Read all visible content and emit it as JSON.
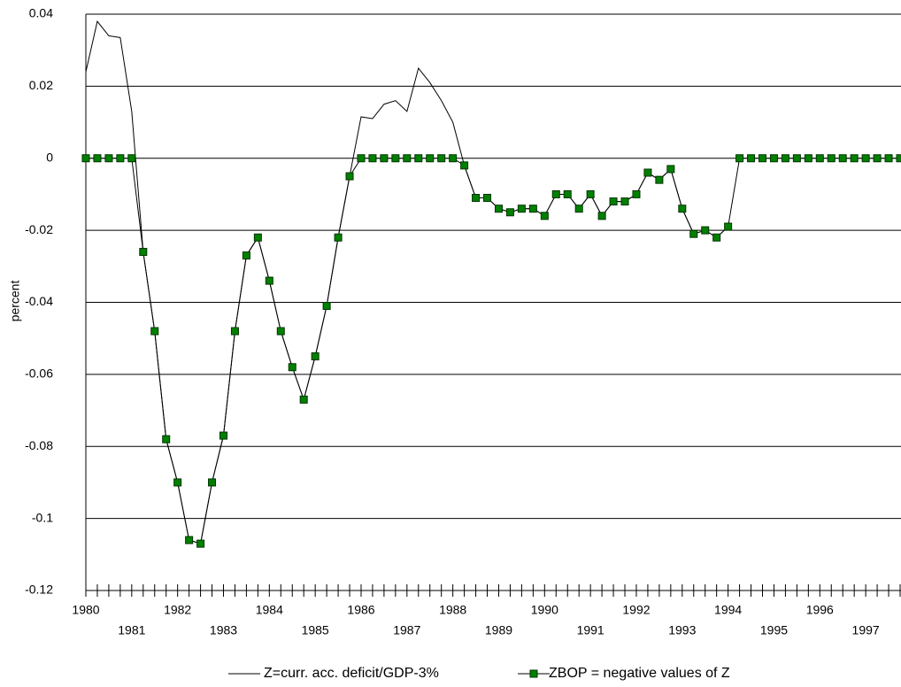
{
  "chart_data": {
    "type": "line",
    "y_label": "percent",
    "categories": [
      "1980",
      null,
      null,
      null,
      "1981",
      null,
      null,
      null,
      "1982",
      null,
      null,
      null,
      "1983",
      null,
      null,
      null,
      "1984",
      null,
      null,
      null,
      "1985",
      null,
      null,
      null,
      "1986",
      null,
      null,
      null,
      "1987",
      null,
      null,
      null,
      "1988",
      null,
      null,
      null,
      "1989",
      null,
      null,
      null,
      "1990",
      null,
      null,
      null,
      "1991",
      null,
      null,
      null,
      "1992",
      null,
      null,
      null,
      "1993",
      null,
      null,
      null,
      "1994",
      null,
      null,
      null,
      "1995",
      null,
      null,
      null,
      "1996",
      null,
      null,
      null,
      "1997",
      null,
      null,
      null
    ],
    "series": [
      {
        "name": "Z=curr. acc. deficit/GDP-3%",
        "color": "#000000",
        "marker": false,
        "values": [
          0.024,
          0.038,
          0.034,
          0.0335,
          0.013,
          -0.026,
          -0.048,
          -0.078,
          -0.09,
          -0.106,
          -0.107,
          -0.09,
          -0.077,
          -0.048,
          -0.027,
          -0.022,
          -0.034,
          -0.048,
          -0.058,
          -0.067,
          -0.055,
          -0.041,
          -0.022,
          -0.005,
          0.0115,
          0.011,
          0.015,
          0.016,
          0.013,
          0.025,
          0.021,
          0.016,
          0.01,
          -0.002,
          -0.011,
          -0.011,
          -0.014,
          -0.015,
          -0.014,
          -0.014,
          -0.016,
          -0.01,
          -0.01,
          -0.014,
          -0.01,
          -0.016,
          -0.012,
          -0.012,
          -0.01,
          -0.004,
          -0.006,
          -0.003,
          -0.014,
          -0.021,
          -0.02,
          -0.022,
          -0.019,
          null,
          null,
          null,
          null,
          null,
          null,
          null,
          null,
          null,
          null,
          null,
          null,
          null,
          null,
          null
        ]
      },
      {
        "name": "ZBOP = negative values of Z",
        "color": "#008000",
        "marker": true,
        "values": [
          0,
          0,
          0,
          0,
          0,
          -0.026,
          -0.048,
          -0.078,
          -0.09,
          -0.106,
          -0.107,
          -0.09,
          -0.077,
          -0.048,
          -0.027,
          -0.022,
          -0.034,
          -0.048,
          -0.058,
          -0.067,
          -0.055,
          -0.041,
          -0.022,
          -0.005,
          0,
          0,
          0,
          0,
          0,
          0,
          0,
          0,
          0,
          -0.002,
          -0.011,
          -0.011,
          -0.014,
          -0.015,
          -0.014,
          -0.014,
          -0.016,
          -0.01,
          -0.01,
          -0.014,
          -0.01,
          -0.016,
          -0.012,
          -0.012,
          -0.01,
          -0.004,
          -0.006,
          -0.003,
          -0.014,
          -0.021,
          -0.02,
          -0.022,
          -0.019,
          0,
          0,
          0,
          0,
          0,
          0,
          0,
          0,
          0,
          0,
          0,
          0,
          0,
          0,
          0
        ]
      }
    ],
    "ylim": [
      -0.12,
      0.04
    ],
    "yticks": [
      -0.12,
      -0.1,
      -0.08,
      -0.06,
      -0.04,
      -0.02,
      0,
      0.02,
      0.04
    ],
    "grid": true,
    "legend": "bottom"
  }
}
